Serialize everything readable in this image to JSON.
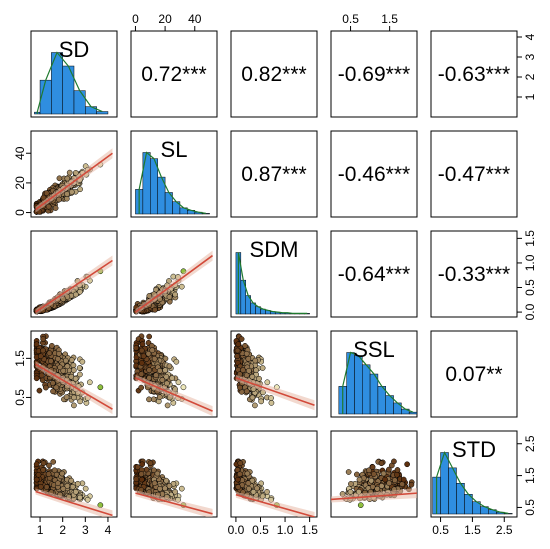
{
  "chart_data": {
    "type": "scatter",
    "title": "",
    "variables": [
      "SD",
      "SL",
      "SDM",
      "SSL",
      "STD"
    ],
    "axis_ticks": {
      "SD": {
        "range": [
          0.6,
          4.4
        ],
        "ticks": [
          1,
          2,
          3,
          4
        ]
      },
      "SL": {
        "range": [
          -3,
          55
        ],
        "ticks": [
          0,
          20,
          40
        ],
        "top_ticks": [
          0,
          20,
          40
        ]
      },
      "SDM": {
        "range": [
          -0.1,
          1.65
        ],
        "ticks": [
          0.0,
          0.5,
          1.0,
          1.5
        ]
      },
      "SSL": {
        "range": [
          0.0,
          2.2
        ],
        "ticks": [
          0.5,
          1.5
        ],
        "top_ticks": [
          0.5,
          1.5
        ]
      },
      "STD": {
        "range": [
          0.2,
          2.9
        ],
        "ticks": [
          0.5,
          1.5,
          2.5
        ],
        "right_ticks": [
          1,
          2,
          3,
          4
        ],
        "right_range": [
          0,
          4.3
        ]
      }
    },
    "correlations": [
      {
        "row": "SD",
        "col": "SL",
        "label": "0.72***"
      },
      {
        "row": "SD",
        "col": "SDM",
        "label": "0.82***"
      },
      {
        "row": "SD",
        "col": "SSL",
        "label": "-0.69***"
      },
      {
        "row": "SD",
        "col": "STD",
        "label": "-0.63***"
      },
      {
        "row": "SL",
        "col": "SDM",
        "label": "0.87***"
      },
      {
        "row": "SL",
        "col": "SSL",
        "label": "-0.46***"
      },
      {
        "row": "SL",
        "col": "STD",
        "label": "-0.47***"
      },
      {
        "row": "SDM",
        "col": "SSL",
        "label": "-0.64***"
      },
      {
        "row": "SDM",
        "col": "STD",
        "label": "-0.33***"
      },
      {
        "row": "SSL",
        "col": "STD",
        "label": "0.07**"
      }
    ],
    "histograms": {
      "SD": {
        "bins": [
          0.75,
          1.0,
          1.5,
          2.0,
          2.5,
          3.0,
          3.5,
          4.0
        ],
        "counts": [
          3,
          55,
          100,
          78,
          38,
          12,
          4
        ]
      },
      "SL": {
        "bins": [
          0,
          5,
          10,
          15,
          20,
          25,
          30,
          35,
          40,
          45,
          50
        ],
        "counts": [
          40,
          100,
          90,
          60,
          35,
          20,
          10,
          6,
          3,
          1
        ]
      },
      "SDM": {
        "bins": [
          0.0,
          0.1,
          0.2,
          0.3,
          0.4,
          0.5,
          0.6,
          0.7,
          0.8,
          0.9,
          1.0,
          1.1,
          1.2,
          1.3,
          1.4,
          1.5
        ],
        "counts": [
          100,
          55,
          30,
          18,
          12,
          8,
          6,
          4,
          3,
          2,
          2,
          1,
          1,
          1,
          1
        ]
      },
      "SSL": {
        "bins": [
          0.2,
          0.4,
          0.6,
          0.8,
          1.0,
          1.2,
          1.4,
          1.6,
          1.8,
          2.0,
          2.2
        ],
        "counts": [
          45,
          100,
          95,
          80,
          65,
          45,
          30,
          18,
          8,
          3
        ]
      },
      "STD": {
        "bins": [
          0.25,
          0.5,
          0.75,
          1.0,
          1.25,
          1.5,
          1.75,
          2.0,
          2.25,
          2.5,
          2.75
        ],
        "counts": [
          60,
          100,
          75,
          50,
          32,
          20,
          12,
          7,
          3,
          1
        ]
      }
    },
    "scatter_trends": [
      {
        "row": "SL",
        "col": "SD",
        "trend": [
          [
            0.8,
            2
          ],
          [
            4.2,
            40
          ]
        ]
      },
      {
        "row": "SDM",
        "col": "SD",
        "trend": [
          [
            0.8,
            0.0
          ],
          [
            4.2,
            1.05
          ]
        ]
      },
      {
        "row": "SDM",
        "col": "SL",
        "trend": [
          [
            0,
            0.0
          ],
          [
            52,
            1.15
          ]
        ]
      },
      {
        "row": "SSL",
        "col": "SD",
        "trend": [
          [
            0.8,
            1.35
          ],
          [
            4.2,
            0.2
          ]
        ]
      },
      {
        "row": "SSL",
        "col": "SL",
        "trend": [
          [
            0,
            1.0
          ],
          [
            52,
            0.15
          ]
        ]
      },
      {
        "row": "SSL",
        "col": "SDM",
        "trend": [
          [
            0.0,
            1.0
          ],
          [
            1.6,
            0.3
          ]
        ]
      },
      {
        "row": "STD",
        "col": "SD",
        "trend": [
          [
            0.8,
            1.0
          ],
          [
            4.2,
            0.25
          ]
        ]
      },
      {
        "row": "STD",
        "col": "SL",
        "trend": [
          [
            0,
            0.95
          ],
          [
            52,
            0.3
          ]
        ]
      },
      {
        "row": "STD",
        "col": "SDM",
        "trend": [
          [
            0.0,
            0.9
          ],
          [
            1.6,
            0.2
          ]
        ]
      },
      {
        "row": "STD",
        "col": "SSL",
        "trend": [
          [
            0.0,
            0.75
          ],
          [
            2.2,
            0.95
          ]
        ]
      }
    ],
    "colors": {
      "histogram_fill": "#2f8ee0",
      "density_line": "#1f7a2e",
      "trend_line": "#d24a3a",
      "trend_band": "#e8b9a8",
      "point_fill_low": "#5a2d0c",
      "point_fill_high": "#f4f0c2",
      "point_fill_green": "#8fbf3f"
    },
    "grid": false,
    "legend": "none"
  }
}
